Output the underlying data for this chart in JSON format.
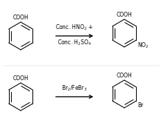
{
  "bg_color": "#ffffff",
  "reaction1_reagent_line1": "Conc. HNO$_2$ +",
  "reaction1_reagent_line2": "Conc. H$_2$SO$_4$",
  "reaction2_reagent": "Br$_2$/FeBr$_3$",
  "figsize": [
    2.36,
    1.78
  ],
  "dpi": 100,
  "text_fs": 5.5,
  "lw": 0.8
}
